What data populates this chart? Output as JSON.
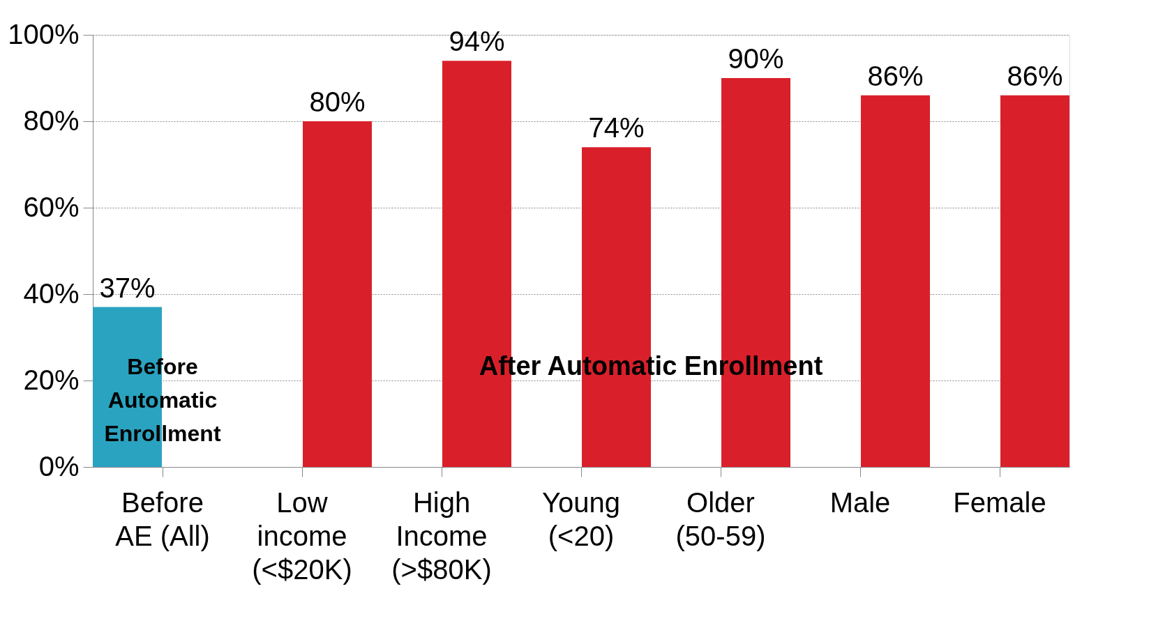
{
  "chart_data": {
    "type": "bar",
    "categories": [
      "Before AE (All)",
      "Low income (<$20K)",
      "High Income (>$80K)",
      "Young (<20)",
      "Older (50-59)",
      "Male",
      "Female"
    ],
    "series": [
      {
        "name": "Before Automatic Enrollment",
        "color": "#2aa3c0",
        "values": [
          37,
          null,
          null,
          null,
          null,
          null,
          null
        ],
        "value_labels": [
          "37%",
          null,
          null,
          null,
          null,
          null,
          null
        ]
      },
      {
        "name": "After Automatic Enrollment",
        "color": "#d9202a",
        "values": [
          null,
          80,
          94,
          74,
          90,
          86,
          86
        ],
        "value_labels": [
          null,
          "80%",
          "94%",
          "74%",
          "90%",
          "86%",
          "86%"
        ]
      }
    ],
    "ylim": [
      0,
      100
    ],
    "yticks": [
      {
        "value": 0,
        "label": "0%"
      },
      {
        "value": 20,
        "label": "20%"
      },
      {
        "value": 40,
        "label": "40%"
      },
      {
        "value": 60,
        "label": "60%"
      },
      {
        "value": 80,
        "label": "80%"
      },
      {
        "value": 100,
        "label": "100%"
      }
    ],
    "grid": "y"
  }
}
